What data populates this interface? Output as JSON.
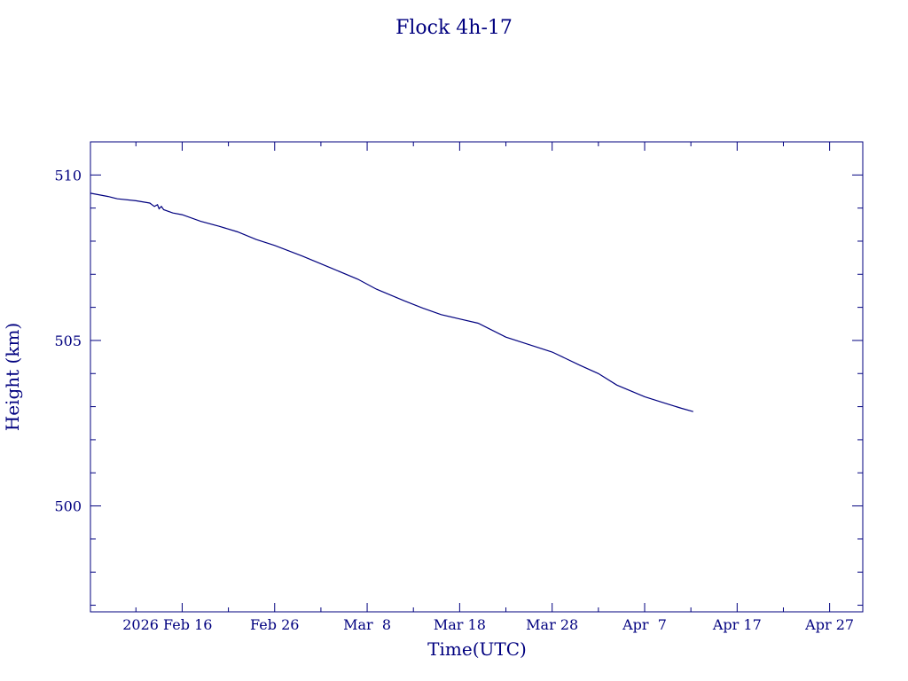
{
  "chart_data": {
    "type": "line",
    "title": "Flock 4h-17",
    "xlabel": "Time(UTC)",
    "ylabel": "Height (km)",
    "x_ticks": [
      "2026 Feb 16",
      "Feb 26",
      "Mar  8",
      "Mar 18",
      "Mar 28",
      "Apr  7",
      "Apr 17",
      "Apr 27"
    ],
    "y_ticks": [
      "500",
      "505",
      "510"
    ],
    "xlim": [
      "2026-02-06T02:00",
      "2026-04-30T14:00"
    ],
    "ylim": [
      496.8,
      511.0
    ],
    "grid": false,
    "series": [
      {
        "x": [
          "2026-02-06T00:00",
          "2026-02-08T00:00",
          "2026-02-09T00:00",
          "2026-02-11T00:00",
          "2026-02-12T12:00",
          "2026-02-13T00:00",
          "2026-02-13T08:00",
          "2026-02-13T12:00",
          "2026-02-13T18:00",
          "2026-02-14T00:00",
          "2026-02-15T00:00",
          "2026-02-16T00:00",
          "2026-02-18T00:00",
          "2026-02-20T00:00",
          "2026-02-22T00:00",
          "2026-02-24T00:00",
          "2026-02-26T00:00",
          "2026-03-01T00:00",
          "2026-03-04T00:00",
          "2026-03-07T00:00",
          "2026-03-09T00:00",
          "2026-03-12T00:00",
          "2026-03-14T00:00",
          "2026-03-16T00:00",
          "2026-03-18T00:00",
          "2026-03-20T00:00",
          "2026-03-23T00:00",
          "2026-03-25T00:00",
          "2026-03-28T00:00",
          "2026-03-31T00:00",
          "2026-04-02T00:00",
          "2026-04-04T00:00",
          "2026-04-07T00:00",
          "2026-04-09T00:00",
          "2026-04-11T00:00",
          "2026-04-12T06:00"
        ],
        "y": [
          509.45,
          509.35,
          509.28,
          509.22,
          509.15,
          509.05,
          509.1,
          508.98,
          509.05,
          508.95,
          508.85,
          508.8,
          508.6,
          508.45,
          508.28,
          508.05,
          507.87,
          507.55,
          507.2,
          506.85,
          506.55,
          506.2,
          505.98,
          505.78,
          505.65,
          505.52,
          505.1,
          504.92,
          504.65,
          504.25,
          504.0,
          503.65,
          503.3,
          503.12,
          502.95,
          502.85
        ]
      }
    ]
  }
}
